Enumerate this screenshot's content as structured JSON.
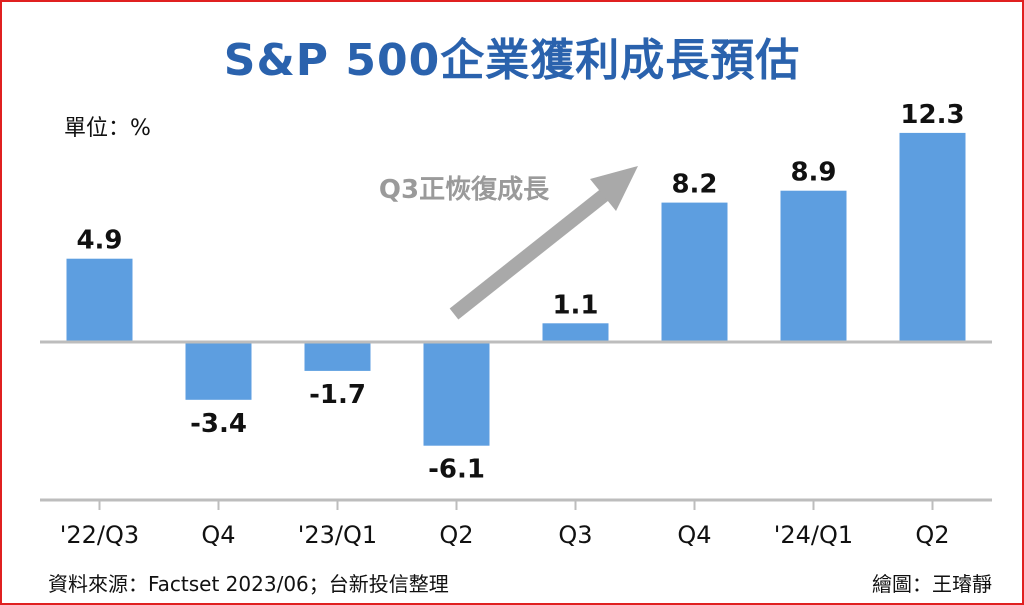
{
  "title": "S&P 500企業獲利成長預估",
  "unit_label": "單位：%",
  "annotation": "Q3正恢復成長",
  "source": "資料來源：Factset 2023/06；台新投信整理",
  "credit": "繪圖：王璿靜",
  "colors": {
    "title": "#2a62ad",
    "bar": "#5d9ee0",
    "arrow": "#a9a9a9",
    "axis": "#bdbdbd",
    "frame": "#e02020"
  },
  "chart_data": {
    "type": "bar",
    "categories": [
      "'22/Q3",
      "Q4",
      "'23/Q1",
      "Q2",
      "Q3",
      "Q4",
      "'24/Q1",
      "Q2"
    ],
    "values": [
      4.9,
      -3.4,
      -1.7,
      -6.1,
      1.1,
      8.2,
      8.9,
      12.3
    ],
    "value_labels": [
      "4.9",
      "-3.4",
      "-1.7",
      "-6.1",
      "1.1",
      "8.2",
      "8.9",
      "12.3"
    ],
    "title": "S&P 500企業獲利成長預估",
    "xlabel": "",
    "ylabel": "",
    "unit": "%",
    "grid": false,
    "legend": "none"
  }
}
